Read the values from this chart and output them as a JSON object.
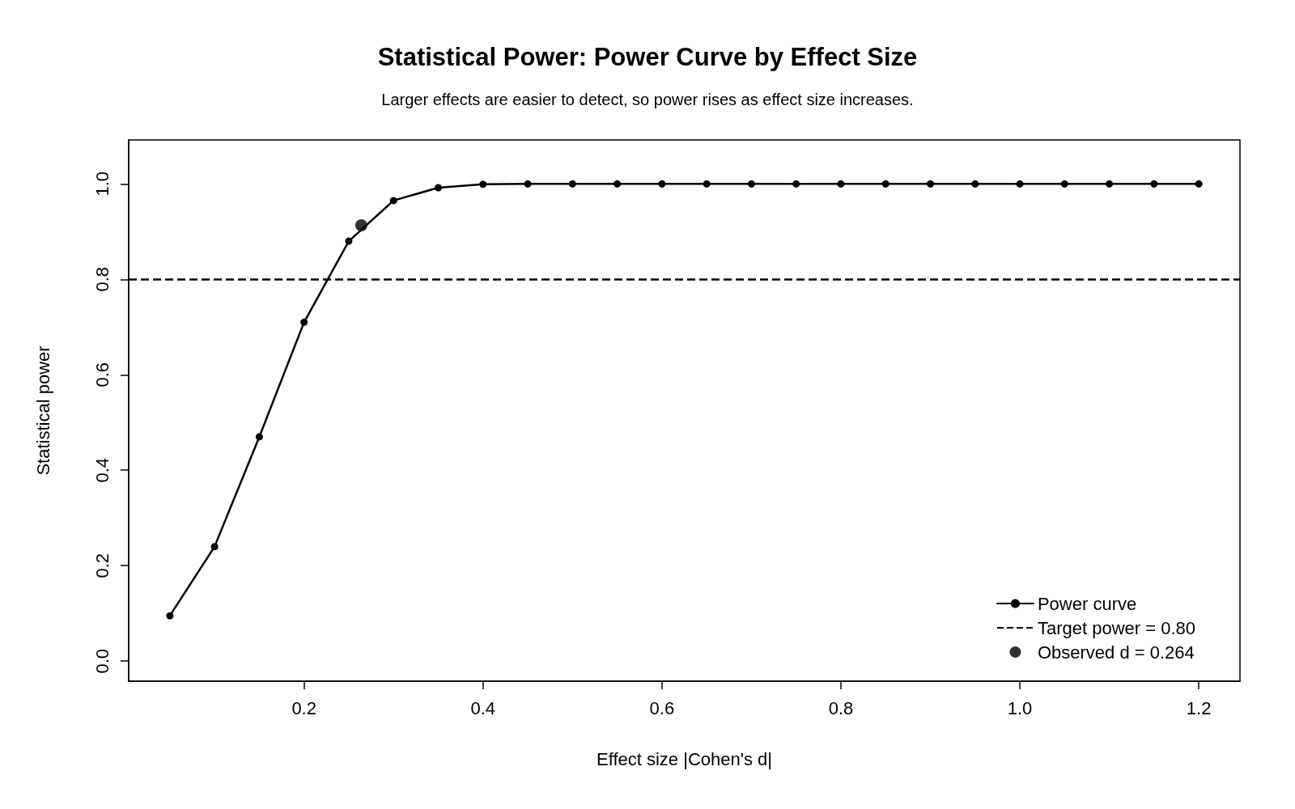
{
  "chart_data": {
    "type": "line",
    "title": "Statistical Power: Power Curve by Effect Size",
    "subtitle": "Larger effects are easier to detect, so power rises as effect size increases.",
    "xlabel": "Effect size |Cohen's d|",
    "ylabel": "Statistical power",
    "series": [
      {
        "name": "Power curve",
        "color": "#000000",
        "x": [
          0.05,
          0.1,
          0.15,
          0.2,
          0.25,
          0.3,
          0.35,
          0.4,
          0.45,
          0.5,
          0.55,
          0.6,
          0.65,
          0.7,
          0.75,
          0.8,
          0.85,
          0.9,
          0.95,
          1.0,
          1.05,
          1.1,
          1.15,
          1.2
        ],
        "values": [
          0.095,
          0.24,
          0.47,
          0.71,
          0.88,
          0.965,
          0.992,
          0.999,
          1.0,
          1.0,
          1.0,
          1.0,
          1.0,
          1.0,
          1.0,
          1.0,
          1.0,
          1.0,
          1.0,
          1.0,
          1.0,
          1.0,
          1.0,
          1.0
        ]
      },
      {
        "name": "Observed d = 0.264",
        "type": "scatter",
        "color": "#000000",
        "x": [
          0.264
        ],
        "values": [
          0.913
        ]
      }
    ],
    "ref_lines": [
      {
        "axis": "y",
        "value": 0.8,
        "label": "Target power = 0.80",
        "line_style": "dashed",
        "color": "#000000"
      }
    ],
    "xlim": [
      0.004,
      1.246
    ],
    "xticks": [
      0.2,
      0.4,
      0.6,
      0.8,
      {
        "value": 1.0,
        "label": "1.0"
      },
      1.2
    ],
    "ylim": [
      -0.042,
      1.092
    ],
    "yticks": [
      {
        "value": 0,
        "label": "0.0"
      },
      0.2,
      0.4,
      0.6,
      0.8,
      {
        "value": 1.0,
        "label": "1.0"
      }
    ],
    "grid": false,
    "legend": "bottom right",
    "marker": "circle",
    "line_style": "solid"
  }
}
